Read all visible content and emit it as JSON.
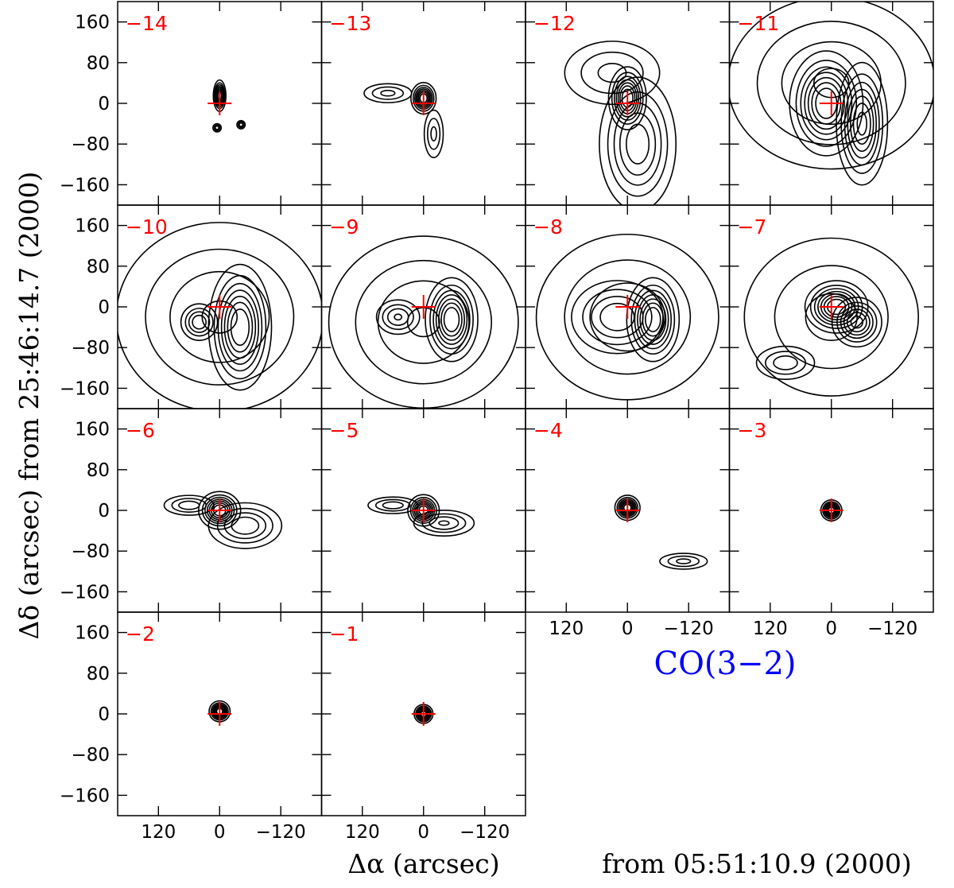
{
  "chart_data": {
    "type": "contour",
    "title": "CO(3−2)",
    "xlabel": "Δα (arcsec)",
    "xlabel_suffix": "from 05:51:10.9 (2000)",
    "ylabel": "Δδ (arcsec) from 25:46:14.7 (2000)",
    "xlim": [
      200,
      -200
    ],
    "ylim": [
      -200,
      200
    ],
    "xticks": [
      120,
      0,
      -120
    ],
    "xtick_labels": [
      "120",
      "0",
      "−120"
    ],
    "yticks": [
      160,
      80,
      0,
      -80,
      -160
    ],
    "ytick_labels": [
      "160",
      "80",
      "0",
      "−80",
      "−160"
    ],
    "source_marker": {
      "x": 0,
      "y": 0,
      "symbol": "+"
    },
    "label_color": "#ff0000",
    "title_color": "#0000ff",
    "contour_color": "#000000",
    "panels": [
      {
        "velocity": "−14",
        "blobs": [
          {
            "x": 0,
            "y": 15,
            "sx": 6,
            "sy": 15,
            "a": 1.0
          },
          {
            "x": 5,
            "y": -48,
            "sx": 5,
            "sy": 5,
            "a": 0.45
          },
          {
            "x": -42,
            "y": -42,
            "sx": 5,
            "sy": 5,
            "a": 0.45
          }
        ]
      },
      {
        "velocity": "−13",
        "blobs": [
          {
            "x": 0,
            "y": 10,
            "sx": 12,
            "sy": 15,
            "a": 1.0
          },
          {
            "x": 70,
            "y": 20,
            "sx": 30,
            "sy": 12,
            "a": 0.4
          },
          {
            "x": -20,
            "y": -60,
            "sx": 12,
            "sy": 30,
            "a": 0.4
          }
        ]
      },
      {
        "velocity": "−12",
        "blobs": [
          {
            "x": 0,
            "y": 10,
            "sx": 18,
            "sy": 30,
            "a": 1.0
          },
          {
            "x": -20,
            "y": -80,
            "sx": 40,
            "sy": 70,
            "a": 0.7
          },
          {
            "x": 30,
            "y": 60,
            "sx": 60,
            "sy": 40,
            "a": 0.4
          }
        ]
      },
      {
        "velocity": "−11",
        "blobs": [
          {
            "x": 10,
            "y": 0,
            "sx": 35,
            "sy": 50,
            "a": 1.0
          },
          {
            "x": -60,
            "y": -40,
            "sx": 25,
            "sy": 60,
            "a": 0.9
          },
          {
            "x": 0,
            "y": 40,
            "sx": 120,
            "sy": 100,
            "a": 0.5
          }
        ]
      },
      {
        "velocity": "−10",
        "blobs": [
          {
            "x": -40,
            "y": -40,
            "sx": 30,
            "sy": 60,
            "a": 1.0
          },
          {
            "x": 40,
            "y": -30,
            "sx": 20,
            "sy": 20,
            "a": 0.6
          },
          {
            "x": 0,
            "y": -20,
            "sx": 120,
            "sy": 110,
            "a": 0.5
          }
        ]
      },
      {
        "velocity": "−9",
        "blobs": [
          {
            "x": -55,
            "y": -25,
            "sx": 25,
            "sy": 40,
            "a": 1.0
          },
          {
            "x": 50,
            "y": -20,
            "sx": 25,
            "sy": 20,
            "a": 0.5
          },
          {
            "x": 0,
            "y": -30,
            "sx": 110,
            "sy": 100,
            "a": 0.5
          }
        ]
      },
      {
        "velocity": "−8",
        "blobs": [
          {
            "x": -50,
            "y": -25,
            "sx": 25,
            "sy": 40,
            "a": 1.0
          },
          {
            "x": 20,
            "y": -20,
            "sx": 50,
            "sy": 40,
            "a": 0.6
          },
          {
            "x": 0,
            "y": -20,
            "sx": 110,
            "sy": 100,
            "a": 0.45
          }
        ]
      },
      {
        "velocity": "−7",
        "blobs": [
          {
            "x": -10,
            "y": 0,
            "sx": 30,
            "sy": 25,
            "a": 1.0
          },
          {
            "x": -50,
            "y": -30,
            "sx": 25,
            "sy": 25,
            "a": 0.8
          },
          {
            "x": 90,
            "y": -110,
            "sx": 35,
            "sy": 20,
            "a": 0.45
          },
          {
            "x": 0,
            "y": -20,
            "sx": 110,
            "sy": 100,
            "a": 0.4
          }
        ]
      },
      {
        "velocity": "−6",
        "blobs": [
          {
            "x": 0,
            "y": 0,
            "sx": 20,
            "sy": 18,
            "a": 1.0
          },
          {
            "x": -50,
            "y": -30,
            "sx": 40,
            "sy": 25,
            "a": 0.6
          },
          {
            "x": 60,
            "y": 10,
            "sx": 30,
            "sy": 12,
            "a": 0.45
          }
        ]
      },
      {
        "velocity": "−5",
        "blobs": [
          {
            "x": 0,
            "y": 0,
            "sx": 15,
            "sy": 15,
            "a": 1.0
          },
          {
            "x": -40,
            "y": -25,
            "sx": 35,
            "sy": 15,
            "a": 0.5
          },
          {
            "x": 60,
            "y": 10,
            "sx": 30,
            "sy": 10,
            "a": 0.45
          }
        ]
      },
      {
        "velocity": "−4",
        "blobs": [
          {
            "x": 0,
            "y": 5,
            "sx": 12,
            "sy": 12,
            "a": 1.0
          },
          {
            "x": -110,
            "y": -100,
            "sx": 30,
            "sy": 10,
            "a": 0.4
          }
        ]
      },
      {
        "velocity": "−3",
        "blobs": [
          {
            "x": 0,
            "y": 0,
            "sx": 10,
            "sy": 10,
            "a": 1.0
          }
        ]
      },
      {
        "velocity": "−2",
        "blobs": [
          {
            "x": 0,
            "y": 5,
            "sx": 10,
            "sy": 10,
            "a": 1.0
          }
        ]
      },
      {
        "velocity": "−1",
        "blobs": [
          {
            "x": 0,
            "y": 0,
            "sx": 9,
            "sy": 9,
            "a": 1.0
          }
        ]
      }
    ]
  }
}
